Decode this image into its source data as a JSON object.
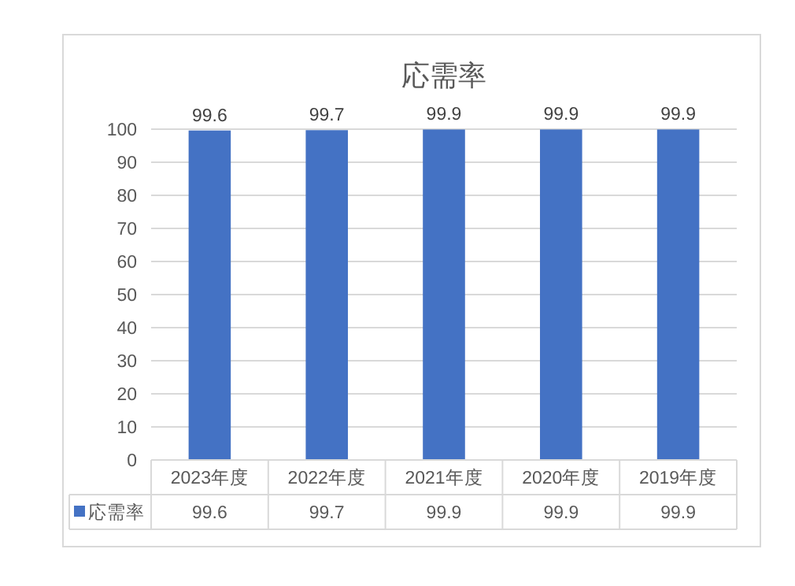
{
  "chart_data": {
    "type": "bar",
    "title": "応需率",
    "categories": [
      "2023年度",
      "2022年度",
      "2021年度",
      "2020年度",
      "2019年度"
    ],
    "series": [
      {
        "name": "応需率",
        "color": "#4472c4",
        "values": [
          99.6,
          99.7,
          99.9,
          99.9,
          99.9
        ]
      }
    ],
    "ylim": [
      0,
      100
    ],
    "yticks": [
      0,
      10,
      20,
      30,
      40,
      50,
      60,
      70,
      80,
      90,
      100
    ],
    "grid": "y",
    "legend": "bottom",
    "data_labels": true,
    "annotations": [
      "99.6",
      "99.7",
      "99.9",
      "99.9",
      "99.9"
    ]
  }
}
